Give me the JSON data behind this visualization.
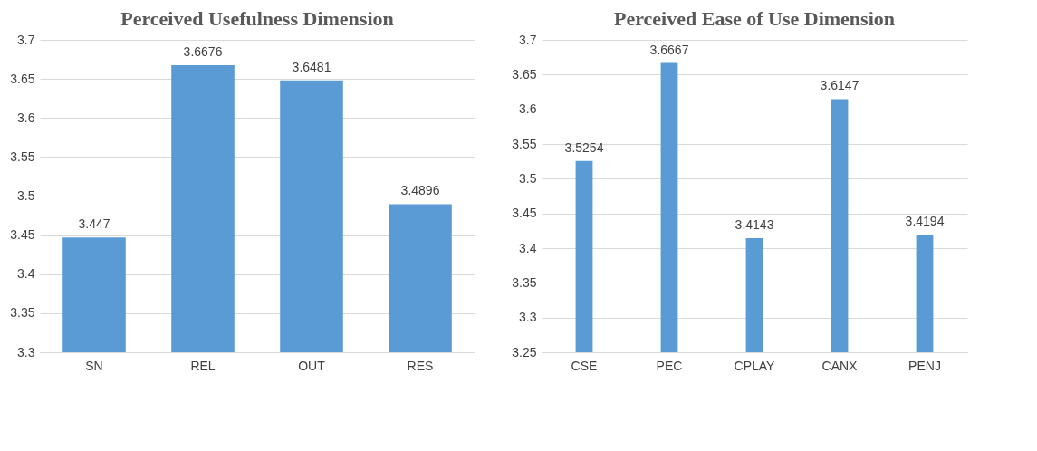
{
  "chart_data": [
    {
      "type": "bar",
      "title": "Perceived Usefulness Dimension",
      "categories": [
        "SN",
        "REL",
        "OUT",
        "RES"
      ],
      "values": [
        3.447,
        3.6676,
        3.6481,
        3.4896
      ],
      "color": "#5b9bd5",
      "ylim": [
        3.3,
        3.7
      ],
      "yticks": [
        3.3,
        3.35,
        3.4,
        3.45,
        3.5,
        3.55,
        3.6,
        3.65,
        3.7
      ],
      "grid": "y",
      "data_labels": true,
      "legend": false
    },
    {
      "type": "bar",
      "title": "Perceived Ease of Use Dimension",
      "categories": [
        "CSE",
        "PEC",
        "CPLAY",
        "CANX",
        "PENJ"
      ],
      "values": [
        3.5254,
        3.6667,
        3.4143,
        3.6147,
        3.4194
      ],
      "color": "#5b9bd5",
      "ylim": [
        3.25,
        3.7
      ],
      "yticks": [
        3.25,
        3.3,
        3.35,
        3.4,
        3.45,
        3.5,
        3.55,
        3.6,
        3.65,
        3.7
      ],
      "grid": "y",
      "data_labels": true,
      "legend": false
    }
  ]
}
